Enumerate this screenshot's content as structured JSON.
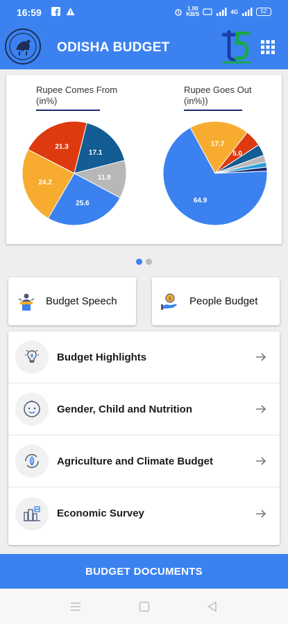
{
  "status_bar": {
    "time": "16:59",
    "left_icons": [
      "facebook-icon",
      "warning-icon"
    ],
    "network_speed": "1.00",
    "network_unit": "KB/S",
    "signal_label": "4G",
    "battery": "52"
  },
  "app_bar": {
    "title": "ODISHA BUDGET",
    "icons": [
      "odisha-emblem-icon",
      "t5-logo-icon",
      "grid-menu-icon"
    ],
    "colors": {
      "primary": "#3b82f0",
      "logo_blue": "#1a3fa8",
      "logo_green": "#18a84a"
    }
  },
  "charts": {
    "left_title_line1": "Rupee Comes From",
    "left_title_line2": "(in%)",
    "right_title_line1": "Rupee Goes Out",
    "right_title_line2": "(in%))"
  },
  "chart_data": [
    {
      "type": "pie",
      "title": "Rupee Comes From (in%)",
      "values": [
        17.1,
        11.8,
        25.6,
        24.2,
        21.3
      ],
      "labels": [
        "17.1",
        "11.8",
        "25.6",
        "24.2",
        "21.3"
      ],
      "colors": [
        "#135c94",
        "#b7b7b7",
        "#3b82f0",
        "#f7ac30",
        "#dd3a10"
      ]
    },
    {
      "type": "pie",
      "title": "Rupee Goes Out (in%))",
      "values": [
        5.0,
        3.4,
        2.1,
        1.5,
        1.2,
        64.9,
        17.7
      ],
      "labels": [
        "5.0",
        "",
        "",
        "",
        "",
        "64.9",
        "17.7"
      ],
      "colors": [
        "#dd3a10",
        "#135c94",
        "#b7b7b7",
        "#2c9ed8",
        "#1b2a6e",
        "#3b82f0",
        "#f7ac30"
      ]
    }
  ],
  "pager": {
    "count": 2,
    "active": 0
  },
  "quick_actions": [
    {
      "label": "Budget Speech",
      "icon": "speaker-podium-icon"
    },
    {
      "label": "People Budget",
      "icon": "money-hand-icon"
    }
  ],
  "list_items": [
    {
      "label": "Budget Highlights",
      "icon": "lightbulb-icon"
    },
    {
      "label": "Gender, Child and Nutrition",
      "icon": "baby-face-icon"
    },
    {
      "label": "Agriculture and Climate Budget",
      "icon": "leaf-cycle-icon"
    },
    {
      "label": "Economic Survey",
      "icon": "city-chart-icon"
    }
  ],
  "bottom_button": {
    "label": "BUDGET DOCUMENTS"
  },
  "nav_bar": {
    "buttons": [
      "menu-nav-icon",
      "home-nav-icon",
      "back-nav-icon"
    ]
  }
}
